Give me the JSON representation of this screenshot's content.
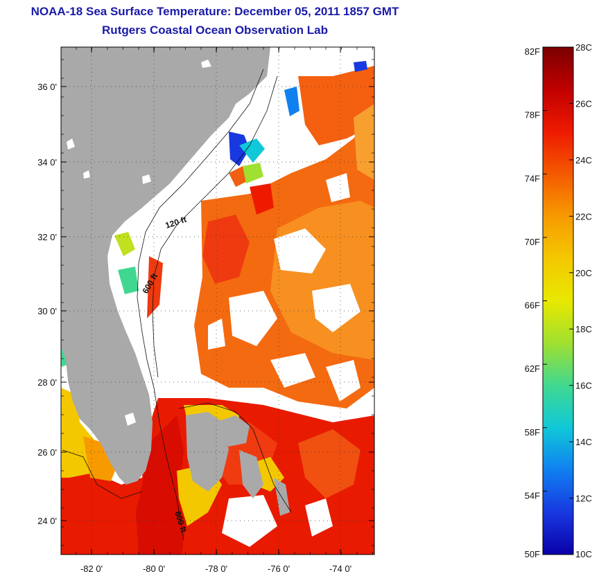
{
  "title": {
    "line1": "NOAA-18 Sea Surface Temperature:  December 05, 2011 1857 GMT",
    "line2": "Rutgers Coastal Ocean Observation Lab"
  },
  "map": {
    "lat_labels": [
      "36 0'",
      "34 0'",
      "32 0'",
      "30 0'",
      "28 0'",
      "26 0'",
      "24 0'"
    ],
    "lon_labels": [
      "-82 0'",
      "-80 0'",
      "-78 0'",
      "-76 0'",
      "-74 0'"
    ],
    "contour_labels": [
      "120 ft",
      "600 ft",
      "600 ft"
    ],
    "colors": {
      "land": "#a9a9a9",
      "cloud": "#ffffff"
    }
  },
  "colorbar": {
    "fahrenheit_labels": [
      "82F",
      "78F",
      "74F",
      "70F",
      "66F",
      "62F",
      "58F",
      "54F",
      "50F"
    ],
    "celsius_labels": [
      "28C",
      "26C",
      "24C",
      "22C",
      "20C",
      "18C",
      "16C",
      "14C",
      "12C",
      "10C"
    ],
    "gradient_colors": [
      "#7a0000",
      "#c00000",
      "#ee1a00",
      "#f45a00",
      "#f79a00",
      "#f4c800",
      "#e8e800",
      "#a0e030",
      "#40d890",
      "#10c8d8",
      "#1080f0",
      "#1838e0",
      "#0a00a8"
    ]
  }
}
